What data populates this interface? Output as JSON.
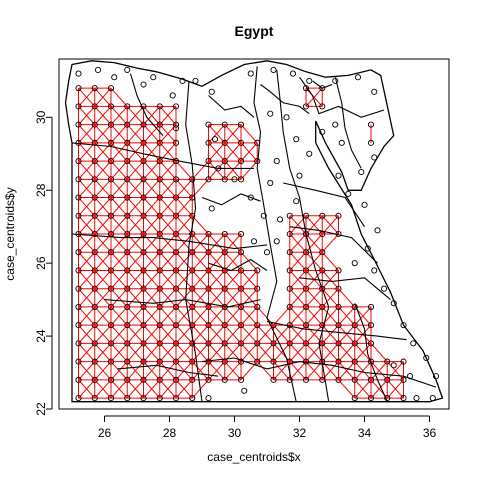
{
  "chart_data": {
    "type": "scatter",
    "title": "Egypt",
    "xlabel": "case_centroids$x",
    "ylabel": "case_centroids$y",
    "xlim": [
      24.6,
      36.6
    ],
    "ylim": [
      22.0,
      31.6
    ],
    "xticks": [
      26,
      28,
      30,
      32,
      34,
      36
    ],
    "yticks": [
      22,
      24,
      26,
      28,
      30
    ],
    "xtick_labels": [
      "26",
      "28",
      "30",
      "32",
      "34",
      "36"
    ],
    "ytick_labels": [
      "22",
      "24",
      "26",
      "28",
      "30"
    ],
    "grid": false,
    "legend": "none",
    "grid_spacing": 0.5,
    "colors": {
      "points": "#000000",
      "network": "#ff0000",
      "boundaries": "#000000"
    },
    "country_outline": [
      [
        25.0,
        31.45
      ],
      [
        25.6,
        31.55
      ],
      [
        26.3,
        31.5
      ],
      [
        27.0,
        31.35
      ],
      [
        27.6,
        31.25
      ],
      [
        28.4,
        31.05
      ],
      [
        29.0,
        30.85
      ],
      [
        29.6,
        31.15
      ],
      [
        30.3,
        31.45
      ],
      [
        31.0,
        31.55
      ],
      [
        31.6,
        31.45
      ],
      [
        32.2,
        31.25
      ],
      [
        32.8,
        31.1
      ],
      [
        33.5,
        31.15
      ],
      [
        34.2,
        31.3
      ],
      [
        34.5,
        31.15
      ],
      [
        34.9,
        29.5
      ],
      [
        34.6,
        29.2
      ],
      [
        34.2,
        28.6
      ],
      [
        33.9,
        28.0
      ],
      [
        33.5,
        28.0
      ],
      [
        33.3,
        28.5
      ],
      [
        32.8,
        29.3
      ],
      [
        32.5,
        29.9
      ],
      [
        32.5,
        29.3
      ],
      [
        32.9,
        28.6
      ],
      [
        33.6,
        27.6
      ],
      [
        33.9,
        26.8
      ],
      [
        34.3,
        26.1
      ],
      [
        34.8,
        25.2
      ],
      [
        35.2,
        24.3
      ],
      [
        35.8,
        23.6
      ],
      [
        36.2,
        22.8
      ],
      [
        36.4,
        22.3
      ],
      [
        36.0,
        22.2
      ],
      [
        34.6,
        22.2
      ],
      [
        33.0,
        22.2
      ],
      [
        31.5,
        22.2
      ],
      [
        30.0,
        22.2
      ],
      [
        28.5,
        22.2
      ],
      [
        27.0,
        22.2
      ],
      [
        25.5,
        22.2
      ],
      [
        25.0,
        22.2
      ],
      [
        25.0,
        24.0
      ],
      [
        25.0,
        26.0
      ],
      [
        25.0,
        28.0
      ],
      [
        25.0,
        29.3
      ],
      [
        24.9,
        29.8
      ],
      [
        24.8,
        30.4
      ],
      [
        24.9,
        31.0
      ]
    ],
    "internal_boundaries": [
      [
        [
          25.0,
          29.3
        ],
        [
          26.2,
          29.2
        ],
        [
          27.2,
          29.0
        ],
        [
          28.3,
          28.8
        ],
        [
          29.5,
          28.6
        ],
        [
          30.6,
          28.6
        ]
      ],
      [
        [
          25.0,
          26.8
        ],
        [
          26.5,
          26.7
        ],
        [
          27.5,
          26.7
        ],
        [
          28.6,
          26.6
        ],
        [
          30.0,
          26.4
        ],
        [
          31.0,
          26.5
        ]
      ],
      [
        [
          28.6,
          31.0
        ],
        [
          28.5,
          29.8
        ],
        [
          28.7,
          28.7
        ],
        [
          28.8,
          27.5
        ],
        [
          28.6,
          26.5
        ],
        [
          28.5,
          25.0
        ],
        [
          28.8,
          23.5
        ],
        [
          29.0,
          22.2
        ]
      ],
      [
        [
          26.0,
          25.0
        ],
        [
          27.5,
          24.9
        ],
        [
          28.5,
          25.0
        ],
        [
          29.8,
          24.8
        ],
        [
          30.8,
          25.0
        ]
      ],
      [
        [
          30.7,
          31.4
        ],
        [
          30.6,
          30.4
        ],
        [
          30.8,
          29.6
        ],
        [
          30.7,
          28.6
        ],
        [
          30.9,
          27.6
        ],
        [
          31.1,
          26.5
        ],
        [
          31.3,
          25.5
        ],
        [
          31.0,
          24.5
        ],
        [
          31.6,
          23.4
        ],
        [
          31.9,
          22.2
        ]
      ],
      [
        [
          31.3,
          31.3
        ],
        [
          31.4,
          30.5
        ],
        [
          31.5,
          29.6
        ],
        [
          31.7,
          28.6
        ],
        [
          32.0,
          27.8
        ],
        [
          32.2,
          26.8
        ],
        [
          32.5,
          25.8
        ],
        [
          32.9,
          24.8
        ],
        [
          32.6,
          23.8
        ],
        [
          32.9,
          22.2
        ]
      ],
      [
        [
          30.8,
          30.9
        ],
        [
          31.1,
          30.7
        ],
        [
          31.5,
          30.4
        ],
        [
          32.0,
          30.3
        ],
        [
          32.3,
          30.1
        ]
      ],
      [
        [
          32.0,
          31.1
        ],
        [
          32.4,
          30.6
        ],
        [
          32.6,
          30.1
        ],
        [
          33.2,
          30.3
        ],
        [
          33.9,
          30.0
        ],
        [
          34.6,
          30.2
        ]
      ],
      [
        [
          33.1,
          31.1
        ],
        [
          33.3,
          30.4
        ],
        [
          33.4,
          29.7
        ],
        [
          33.6,
          29.1
        ],
        [
          33.9,
          28.6
        ]
      ],
      [
        [
          31.5,
          28.2
        ],
        [
          32.5,
          28.0
        ],
        [
          33.4,
          27.8
        ],
        [
          34.0,
          27.0
        ]
      ],
      [
        [
          31.7,
          27.0
        ],
        [
          32.6,
          26.9
        ],
        [
          33.6,
          26.7
        ],
        [
          34.4,
          26.0
        ]
      ],
      [
        [
          32.0,
          25.6
        ],
        [
          33.0,
          25.5
        ],
        [
          34.0,
          25.6
        ],
        [
          34.8,
          25.0
        ]
      ],
      [
        [
          31.0,
          24.4
        ],
        [
          32.1,
          24.2
        ],
        [
          33.2,
          24.1
        ],
        [
          34.4,
          24.0
        ],
        [
          35.3,
          23.9
        ]
      ],
      [
        [
          29.0,
          23.3
        ],
        [
          30.0,
          23.4
        ],
        [
          31.0,
          23.1
        ],
        [
          32.0,
          23.3
        ],
        [
          33.0,
          23.2
        ],
        [
          34.0,
          23.0
        ],
        [
          35.2,
          22.9
        ],
        [
          36.2,
          22.6
        ]
      ],
      [
        [
          26.4,
          23.1
        ],
        [
          27.6,
          23.2
        ],
        [
          28.6,
          23.0
        ],
        [
          29.5,
          22.9
        ]
      ],
      [
        [
          29.2,
          30.6
        ],
        [
          29.7,
          30.2
        ],
        [
          30.2,
          30.3
        ],
        [
          30.6,
          30.0
        ]
      ],
      [
        [
          29.0,
          27.8
        ],
        [
          29.6,
          27.6
        ],
        [
          30.2,
          27.9
        ],
        [
          30.8,
          27.7
        ]
      ],
      [
        [
          29.2,
          26.0
        ],
        [
          29.9,
          25.8
        ],
        [
          30.5,
          26.1
        ],
        [
          31.0,
          25.8
        ]
      ],
      [
        [
          33.7,
          24.9
        ],
        [
          34.0,
          24.2
        ],
        [
          34.1,
          23.5
        ],
        [
          34.4,
          22.8
        ],
        [
          34.7,
          22.2
        ]
      ],
      [
        [
          32.4,
          31.0
        ],
        [
          32.7,
          30.8
        ],
        [
          33.0,
          30.9
        ]
      ],
      [
        [
          26.8,
          31.2
        ],
        [
          27.0,
          30.6
        ],
        [
          27.3,
          30.0
        ],
        [
          27.8,
          29.5
        ]
      ]
    ],
    "region_mask": [
      {
        "x": [
          25.0,
          26.4
        ],
        "y": [
          22.3,
          30.9
        ]
      },
      {
        "x": [
          26.4,
          27.2
        ],
        "y": [
          22.3,
          30.5
        ]
      },
      {
        "x": [
          27.2,
          28.2
        ],
        "y": [
          22.3,
          30.3
        ]
      },
      {
        "x": [
          28.2,
          28.9
        ],
        "y": [
          22.3,
          28.3
        ]
      },
      {
        "x": [
          28.9,
          30.2
        ],
        "y": [
          22.5,
          27.0
        ]
      },
      {
        "x": [
          30.2,
          30.8
        ],
        "y": [
          23.0,
          26.0
        ]
      },
      {
        "x": [
          30.8,
          31.6
        ],
        "y": [
          22.6,
          24.6
        ]
      },
      {
        "x": [
          31.6,
          32.9
        ],
        "y": [
          22.6,
          27.5
        ]
      },
      {
        "x": [
          32.9,
          33.6
        ],
        "y": [
          22.6,
          26.0
        ]
      },
      {
        "x": [
          33.6,
          34.6
        ],
        "y": [
          22.3,
          24.9
        ]
      },
      {
        "x": [
          34.6,
          35.4
        ],
        "y": [
          22.3,
          23.4
        ]
      },
      {
        "x": [
          29.2,
          30.2
        ],
        "y": [
          28.0,
          30.2
        ]
      },
      {
        "x": [
          30.2,
          30.8
        ],
        "y": [
          28.8,
          29.6
        ]
      },
      {
        "x": [
          33.8,
          34.6
        ],
        "y": [
          29.0,
          30.2
        ]
      },
      {
        "x": [
          32.0,
          33.0
        ],
        "y": [
          30.2,
          30.8
        ]
      },
      {
        "x": [
          32.8,
          33.6
        ],
        "y": [
          26.8,
          27.6
        ]
      }
    ],
    "sparse_points": [
      [
        25.2,
        31.2
      ],
      [
        25.8,
        31.3
      ],
      [
        26.7,
        31.3
      ],
      [
        27.5,
        31.1
      ],
      [
        28.8,
        31.0
      ],
      [
        29.3,
        30.7
      ],
      [
        30.5,
        31.2
      ],
      [
        31.2,
        31.3
      ],
      [
        31.8,
        31.2
      ],
      [
        32.3,
        31.0
      ],
      [
        33.1,
        31.0
      ],
      [
        33.8,
        31.1
      ],
      [
        34.3,
        30.7
      ],
      [
        29.5,
        28.6
      ],
      [
        30.0,
        28.3
      ],
      [
        30.5,
        27.8
      ],
      [
        29.3,
        27.5
      ],
      [
        30.9,
        27.3
      ],
      [
        31.1,
        30.1
      ],
      [
        31.6,
        30.0
      ],
      [
        31.9,
        29.4
      ],
      [
        32.3,
        29.0
      ],
      [
        33.3,
        29.3
      ],
      [
        33.9,
        28.5
      ],
      [
        34.3,
        28.9
      ],
      [
        31.3,
        28.8
      ],
      [
        31.1,
        28.2
      ],
      [
        33.2,
        28.4
      ],
      [
        33.5,
        27.9
      ],
      [
        34.0,
        27.6
      ],
      [
        34.1,
        26.4
      ],
      [
        34.3,
        25.8
      ],
      [
        34.6,
        25.3
      ],
      [
        34.9,
        24.9
      ],
      [
        35.2,
        24.3
      ],
      [
        35.5,
        23.8
      ],
      [
        35.9,
        23.4
      ],
      [
        36.2,
        22.9
      ],
      [
        36.1,
        22.3
      ],
      [
        35.6,
        22.3
      ],
      [
        31.4,
        27.2
      ],
      [
        31.3,
        26.6
      ],
      [
        31.0,
        26.3
      ],
      [
        30.6,
        26.6
      ],
      [
        29.4,
        29.4
      ],
      [
        28.2,
        29.7
      ],
      [
        28.4,
        31.0
      ],
      [
        28.1,
        30.6
      ],
      [
        27.2,
        30.9
      ],
      [
        26.3,
        31.1
      ],
      [
        34.4,
        26.9
      ],
      [
        33.1,
        29.8
      ],
      [
        32.7,
        29.6
      ],
      [
        32.0,
        28.4
      ],
      [
        31.9,
        27.7
      ],
      [
        33.7,
        26.0
      ],
      [
        34.9,
        23.2
      ],
      [
        35.4,
        22.9
      ],
      [
        30.3,
        22.5
      ],
      [
        29.2,
        22.3
      ]
    ]
  }
}
